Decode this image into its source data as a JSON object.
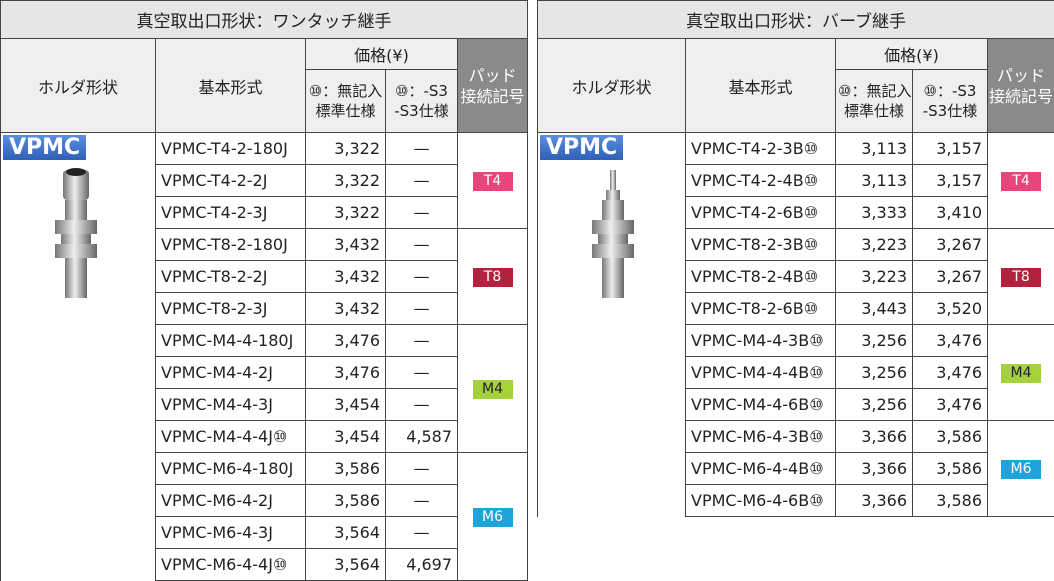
{
  "tables": [
    {
      "title": "真空取出口形状：ワンタッチ継手",
      "columns": {
        "holder": "ホルダ形状",
        "model": "基本形式",
        "price": "価格(¥)",
        "price_standard": [
          "⑩：無記入",
          "標準仕様"
        ],
        "price_s3": [
          "⑩：-S3",
          "-S3仕様"
        ],
        "pad": [
          "パッド",
          "接続記号"
        ]
      },
      "holder_label": "VPMC",
      "groups": [
        {
          "pad": "T4",
          "rows": [
            [
              "VPMC-T4-2-180J",
              "3,322",
              "—"
            ],
            [
              "VPMC-T4-2-2J",
              "3,322",
              "—"
            ],
            [
              "VPMC-T4-2-3J",
              "3,322",
              "—"
            ]
          ]
        },
        {
          "pad": "T8",
          "rows": [
            [
              "VPMC-T8-2-180J",
              "3,432",
              "—"
            ],
            [
              "VPMC-T8-2-2J",
              "3,432",
              "—"
            ],
            [
              "VPMC-T8-2-3J",
              "3,432",
              "—"
            ]
          ]
        },
        {
          "pad": "M4",
          "rows": [
            [
              "VPMC-M4-4-180J",
              "3,476",
              "—"
            ],
            [
              "VPMC-M4-4-2J",
              "3,476",
              "—"
            ],
            [
              "VPMC-M4-4-3J",
              "3,454",
              "—"
            ],
            [
              "VPMC-M4-4-4J⑩",
              "3,454",
              "4,587"
            ]
          ]
        },
        {
          "pad": "M6",
          "rows": [
            [
              "VPMC-M6-4-180J",
              "3,586",
              "—"
            ],
            [
              "VPMC-M6-4-2J",
              "3,586",
              "—"
            ],
            [
              "VPMC-M6-4-3J",
              "3,564",
              "—"
            ],
            [
              "VPMC-M6-4-4J⑩",
              "3,564",
              "4,697"
            ]
          ]
        }
      ]
    },
    {
      "title": "真空取出口形状：バーブ継手",
      "columns": {
        "holder": "ホルダ形状",
        "model": "基本形式",
        "price": "価格(¥)",
        "price_standard": [
          "⑩：無記入",
          "標準仕様"
        ],
        "price_s3": [
          "⑩：-S3",
          "-S3仕様"
        ],
        "pad": [
          "パッド",
          "接続記号"
        ]
      },
      "holder_label": "VPMC",
      "groups": [
        {
          "pad": "T4",
          "rows": [
            [
              "VPMC-T4-2-3B⑩",
              "3,113",
              "3,157"
            ],
            [
              "VPMC-T4-2-4B⑩",
              "3,113",
              "3,157"
            ],
            [
              "VPMC-T4-2-6B⑩",
              "3,333",
              "3,410"
            ]
          ]
        },
        {
          "pad": "T8",
          "rows": [
            [
              "VPMC-T8-2-3B⑩",
              "3,223",
              "3,267"
            ],
            [
              "VPMC-T8-2-4B⑩",
              "3,223",
              "3,267"
            ],
            [
              "VPMC-T8-2-6B⑩",
              "3,443",
              "3,520"
            ]
          ]
        },
        {
          "pad": "M4",
          "rows": [
            [
              "VPMC-M4-4-3B⑩",
              "3,256",
              "3,476"
            ],
            [
              "VPMC-M4-4-4B⑩",
              "3,256",
              "3,476"
            ],
            [
              "VPMC-M4-4-6B⑩",
              "3,256",
              "3,476"
            ]
          ]
        },
        {
          "pad": "M6",
          "rows": [
            [
              "VPMC-M6-4-3B⑩",
              "3,366",
              "3,586"
            ],
            [
              "VPMC-M6-4-4B⑩",
              "3,366",
              "3,586"
            ],
            [
              "VPMC-M6-4-6B⑩",
              "3,366",
              "3,586"
            ]
          ]
        }
      ]
    }
  ]
}
